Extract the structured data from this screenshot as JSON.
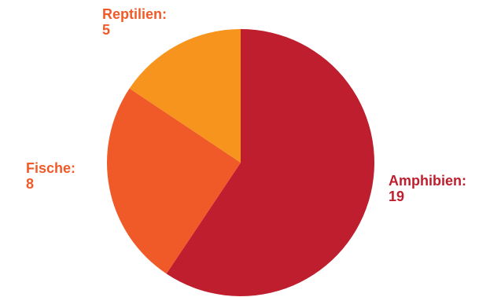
{
  "chart_data": {
    "type": "pie",
    "start_angle_deg": 0,
    "direction": "clockwise",
    "slices": [
      {
        "label": "Amphibien:",
        "value": 19,
        "color": "#be1e2d",
        "label_color": "#be1e2d"
      },
      {
        "label": "Fische:",
        "value": 8,
        "color": "#f05a28",
        "label_color": "#f05a28"
      },
      {
        "label": "Reptilien:",
        "value": 5,
        "color": "#f7941d",
        "label_color": "#f05a28"
      }
    ]
  }
}
